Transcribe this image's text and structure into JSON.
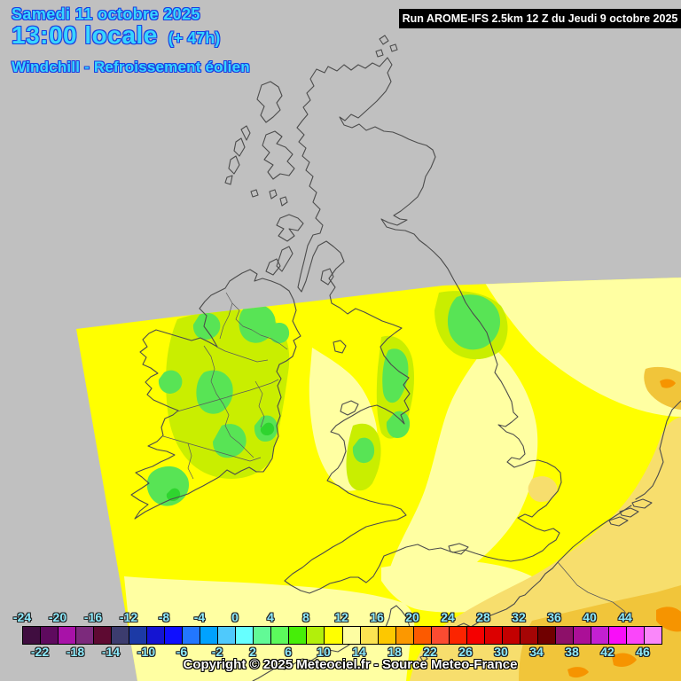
{
  "header": {
    "date_line": "Samedi 11 octobre 2025",
    "time_line": "13:00 locale",
    "time_offset": "(+ 47h)",
    "param_line": "Windchill - Refroissement éolien",
    "run_box": "Run AROME-IFS 2.5km 12 Z du Jeudi 9 octobre 2025"
  },
  "footer": {
    "copyright": "Copyright © 2025 Meteociel.fr - Source Meteo-France"
  },
  "colorbar": {
    "top_labels": [
      "-24",
      "-20",
      "-16",
      "-12",
      "-8",
      "-4",
      "0",
      "4",
      "8",
      "12",
      "16",
      "20",
      "24",
      "28",
      "32",
      "36",
      "40",
      "44"
    ],
    "bottom_labels": [
      "-22",
      "-18",
      "-14",
      "-10",
      "-6",
      "-2",
      "2",
      "6",
      "10",
      "14",
      "18",
      "22",
      "26",
      "30",
      "34",
      "38",
      "42",
      "46"
    ],
    "cell_values": [
      -24,
      -22,
      -20,
      -18,
      -16,
      -14,
      -12,
      -10,
      -8,
      -6,
      -4,
      -2,
      0,
      2,
      4,
      6,
      8,
      10,
      12,
      14,
      16,
      18,
      20,
      22,
      24,
      26,
      28,
      30,
      32,
      34,
      36,
      38,
      40,
      42,
      44,
      46
    ],
    "cell_colors": [
      "#400d40",
      "#5e0a5e",
      "#a812a8",
      "#7c2a7c",
      "#5e0a32",
      "#3c3c6e",
      "#1c3aa6",
      "#1414d2",
      "#0f0fff",
      "#2277ff",
      "#00a2ff",
      "#4fc9fc",
      "#66ffff",
      "#62fa96",
      "#5cfa5c",
      "#46ee08",
      "#b2ef0b",
      "#ffff00",
      "#fdfda2",
      "#fbe351",
      "#fdc800",
      "#fc9800",
      "#fc5a00",
      "#fb4b31",
      "#fc2400",
      "#f50000",
      "#dc0000",
      "#c30000",
      "#a50505",
      "#700000",
      "#8d1069",
      "#ab0f97",
      "#c320d2",
      "#f90df9",
      "#fa46fa",
      "#fa87fa"
    ]
  },
  "palette": {
    "background_gray": "#c0c0c0",
    "title_fill": "#38d5ff",
    "title_outline": "#1d3fe0",
    "scale_label_fill": "#8deafc",
    "field_yellow": "#ffff00",
    "field_pale_yellow": "#ffffa2",
    "field_tan": "#f7de6d",
    "field_gold": "#f1c53a",
    "field_orange": "#f69400",
    "field_yellow_green": "#c9ee00",
    "field_green": "#58e455",
    "coastline": "#4c4c4c"
  }
}
